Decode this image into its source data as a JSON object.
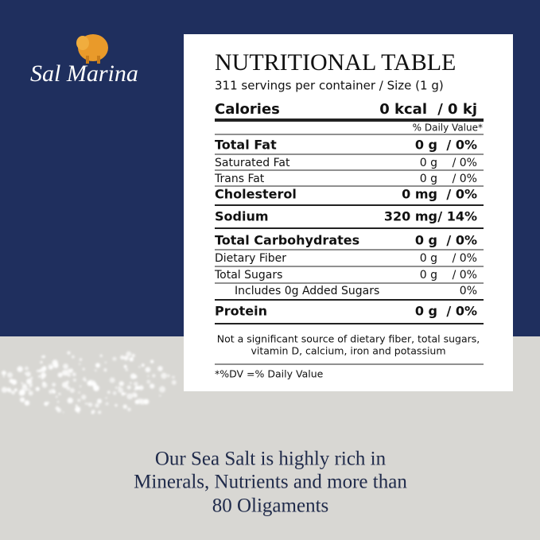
{
  "brand": "Sal Marina",
  "table": {
    "title": "NUTRITIONAL TABLE",
    "servings": "311 servings per container / Size (1 g)",
    "calories": {
      "label": "Calories",
      "amount": "0 kcal",
      "dv": "/ 0 kj"
    },
    "daily_value_header": "% Daily Value*",
    "rows": [
      {
        "label": "Total Fat",
        "amount": "0 g",
        "dv": "/ 0%"
      },
      {
        "label": "Saturated Fat",
        "amount": "0 g",
        "dv": "/ 0%"
      },
      {
        "label": "Trans Fat",
        "amount": "0 g",
        "dv": "/ 0%"
      },
      {
        "label": "Cholesterol",
        "amount": "0 mg",
        "dv": "/ 0%"
      },
      {
        "label": "Sodium",
        "amount": "320 mg",
        "dv": "/ 14%"
      },
      {
        "label": "Total Carbohydrates",
        "amount": "0 g",
        "dv": "/ 0%"
      },
      {
        "label": "Dietary Fiber",
        "amount": "0 g",
        "dv": "/ 0%"
      },
      {
        "label": "Total Sugars",
        "amount": "0 g",
        "dv": "/ 0%"
      },
      {
        "label": "Includes 0g Added Sugars",
        "dv": "0%"
      },
      {
        "label": "Protein",
        "amount": "0 g",
        "dv": "/ 0%"
      }
    ],
    "note": [
      "Not a significant source of dietary fiber, total sugars,",
      "vitamin D, calcium, iron and potassium"
    ],
    "footnote": "*%DV =% Daily Value"
  },
  "tagline": [
    "Our Sea Salt is highly rich in",
    "Minerals, Nutrients and more than",
    "80 Oligaments"
  ]
}
